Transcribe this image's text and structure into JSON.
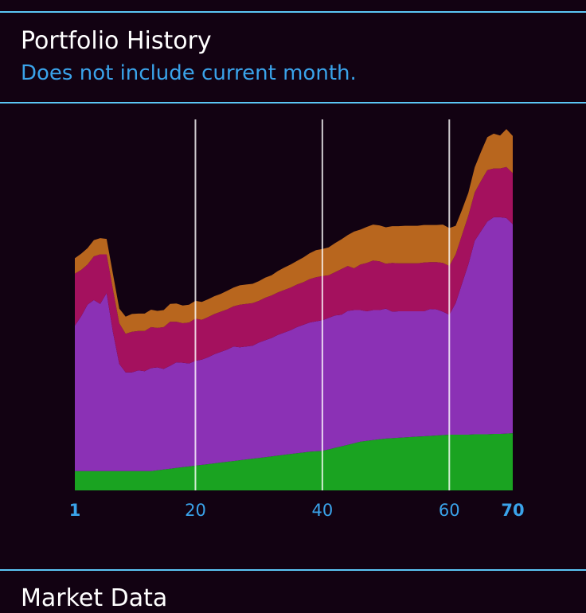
{
  "header": {
    "title": "Portfolio History",
    "subtitle": "Does not include current month."
  },
  "next_section": {
    "title": "Market Data"
  },
  "colors": {
    "background": "#120212",
    "divider": "#5bc6f5",
    "accent_text": "#3aa3ea",
    "marker_line": "#ffffff"
  },
  "chart_data": {
    "type": "area",
    "stacked": true,
    "x": [
      1,
      2,
      3,
      4,
      5,
      6,
      7,
      8,
      9,
      10,
      11,
      12,
      13,
      14,
      15,
      16,
      17,
      18,
      19,
      20,
      21,
      22,
      23,
      24,
      25,
      26,
      27,
      28,
      29,
      30,
      31,
      32,
      33,
      34,
      35,
      36,
      37,
      38,
      39,
      40,
      41,
      42,
      43,
      44,
      45,
      46,
      47,
      48,
      49,
      50,
      51,
      52,
      53,
      54,
      55,
      56,
      57,
      58,
      59,
      60,
      61,
      62,
      63,
      64,
      65,
      66,
      67,
      68,
      69,
      70
    ],
    "xlim": [
      1,
      70
    ],
    "ylim": [
      0,
      100
    ],
    "x_ticks": [
      1,
      20,
      40,
      60,
      70
    ],
    "x_ticks_bold": [
      1,
      70
    ],
    "marker_lines_x": [
      20,
      40,
      60
    ],
    "series": [
      {
        "color": "#1aa321",
        "values": [
          5,
          5,
          5,
          5,
          5,
          5,
          5,
          5,
          5,
          5,
          5,
          5,
          5,
          5.2,
          5.4,
          5.6,
          5.8,
          6,
          6.2,
          6.4,
          6.6,
          6.8,
          7,
          7.2,
          7.4,
          7.6,
          7.8,
          8,
          8.2,
          8.4,
          8.6,
          8.8,
          9,
          9.2,
          9.4,
          9.6,
          9.8,
          10,
          10.1,
          10.2,
          10.6,
          11,
          11.4,
          11.8,
          12.2,
          12.6,
          12.8,
          13,
          13.2,
          13.4,
          13.5,
          13.6,
          13.7,
          13.8,
          13.9,
          14,
          14.1,
          14.2,
          14.3,
          14.4,
          14.4,
          14.4,
          14.4,
          14.5,
          14.5,
          14.5,
          14.6,
          14.6,
          14.7,
          14.8
        ]
      },
      {
        "color": "#8b31b5",
        "values": [
          37.6,
          40,
          43,
          44.2,
          43.2,
          46,
          36,
          27.7,
          25.5,
          25.5,
          26,
          25.8,
          26.6,
          26.6,
          26,
          26.6,
          27.3,
          27,
          26.6,
          27.1,
          27.2,
          27.6,
          28.2,
          28.6,
          29,
          29.6,
          29.2,
          29.2,
          29.2,
          29.8,
          30.2,
          30.6,
          31.2,
          31.6,
          32,
          32.6,
          33,
          33.4,
          33.6,
          33.8,
          34,
          34.2,
          34,
          34.6,
          34.4,
          34,
          33.5,
          33.6,
          33.4,
          33.6,
          32.7,
          32.7,
          32.6,
          32.5,
          32.4,
          32.3,
          32.8,
          32.6,
          31.9,
          31,
          34,
          39,
          44,
          50,
          52.5,
          55,
          56,
          56,
          55.7,
          54
        ]
      },
      {
        "color": "#a4115e",
        "values": [
          13.4,
          12,
          10.4,
          11.3,
          12.8,
          10,
          11,
          10.5,
          10,
          10.5,
          10.2,
          10.4,
          10.6,
          10.2,
          10.8,
          11.4,
          10.5,
          10.2,
          10.6,
          10.9,
          10.3,
          10.4,
          10.4,
          10.4,
          10.4,
          10.4,
          11,
          11,
          11,
          10.8,
          11,
          11,
          11,
          11,
          11,
          11,
          11,
          11.2,
          11.4,
          11.4,
          11,
          11.2,
          11.8,
          11.6,
          10.8,
          11.8,
          12.5,
          12.8,
          12.6,
          11.6,
          12.6,
          12.4,
          12.4,
          12.4,
          12.4,
          12.6,
          12.1,
          12.2,
          12.6,
          12.6,
          12.6,
          12.6,
          12.6,
          12.5,
          13,
          13.3,
          12.6,
          12.6,
          13.2,
          13.2
        ]
      },
      {
        "color": "#b8661e",
        "values": [
          4,
          4.2,
          4.2,
          4.2,
          4.2,
          4,
          4,
          3.8,
          4.4,
          4.6,
          4.5,
          4.5,
          4.5,
          4.4,
          4.4,
          4.6,
          4.7,
          4.6,
          4.6,
          4.6,
          4.6,
          4.6,
          4.6,
          4.6,
          4.8,
          4.8,
          5,
          5,
          5,
          5.1,
          5.2,
          5.2,
          5.5,
          5.8,
          6,
          6.1,
          6.4,
          6.7,
          7,
          7,
          7.2,
          7.5,
          7.7,
          8,
          9.5,
          9,
          9.3,
          9.3,
          9.3,
          9.4,
          9.5,
          9.6,
          9.7,
          9.7,
          9.7,
          9.7,
          9.6,
          9.6,
          9.9,
          9.8,
          7.4,
          6.5,
          5.9,
          6.5,
          7.5,
          8.5,
          9,
          8.5,
          9.8,
          9.6
        ]
      }
    ]
  }
}
